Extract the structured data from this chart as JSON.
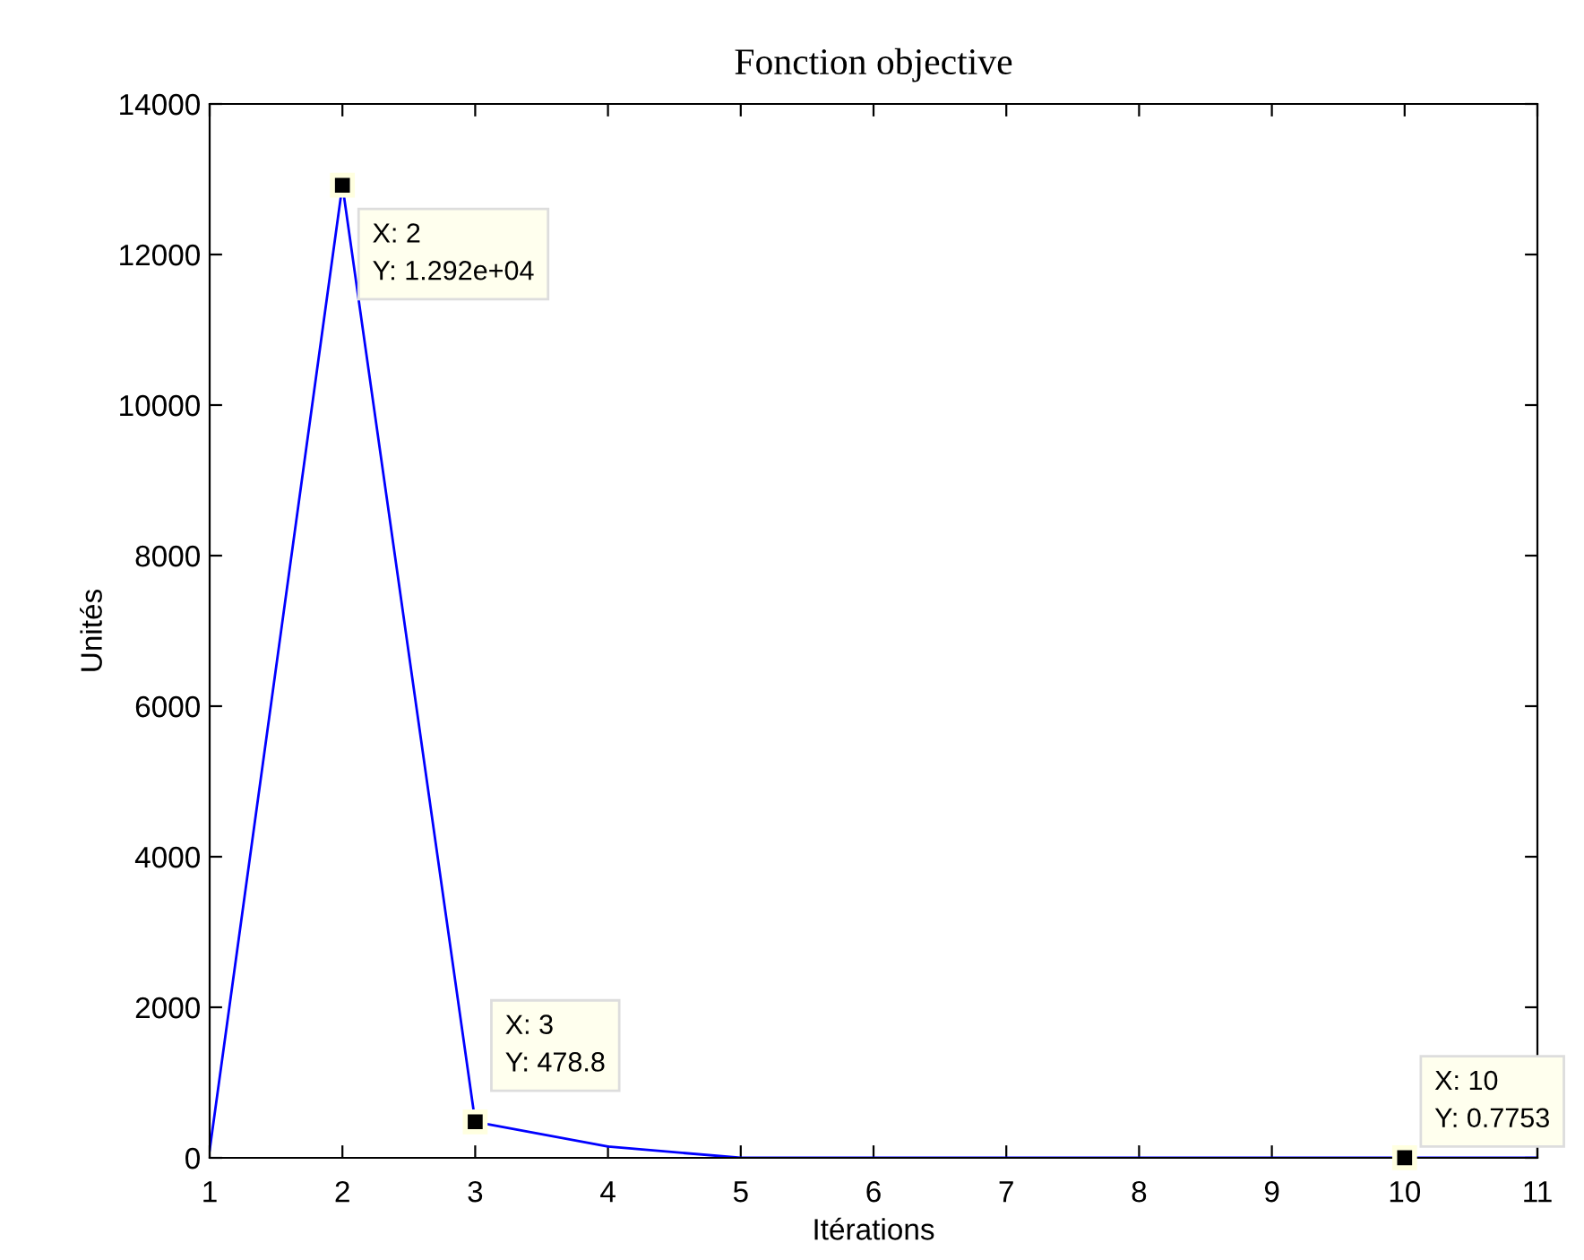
{
  "chart_data": {
    "type": "line",
    "title": "Fonction objective",
    "xlabel": "Itérations",
    "ylabel": "Unités",
    "x": [
      1,
      2,
      3,
      4,
      5,
      6,
      7,
      8,
      9,
      10,
      11
    ],
    "series": [
      {
        "color": "#0000ff",
        "values": [
          100,
          12920,
          478.8,
          150,
          0,
          0,
          0,
          0,
          0,
          0.7753,
          0
        ]
      }
    ],
    "xlim": [
      1,
      11
    ],
    "xticks": [
      1,
      2,
      3,
      4,
      5,
      6,
      7,
      8,
      9,
      10,
      11
    ],
    "ylim": [
      0,
      14000
    ],
    "yticks": [
      0,
      2000,
      4000,
      6000,
      8000,
      10000,
      12000,
      14000
    ],
    "grid": false,
    "marker": "none",
    "line_style": "solid",
    "annotations": [
      {
        "text": "X: 2\nY: 1.292e+04",
        "x": 2,
        "y": 12920
      },
      {
        "text": "X: 3\nY: 478.8",
        "x": 3,
        "y": 478.8
      },
      {
        "text": "X: 10\nY: 0.7753",
        "x": 10,
        "y": 0.7753
      }
    ]
  }
}
